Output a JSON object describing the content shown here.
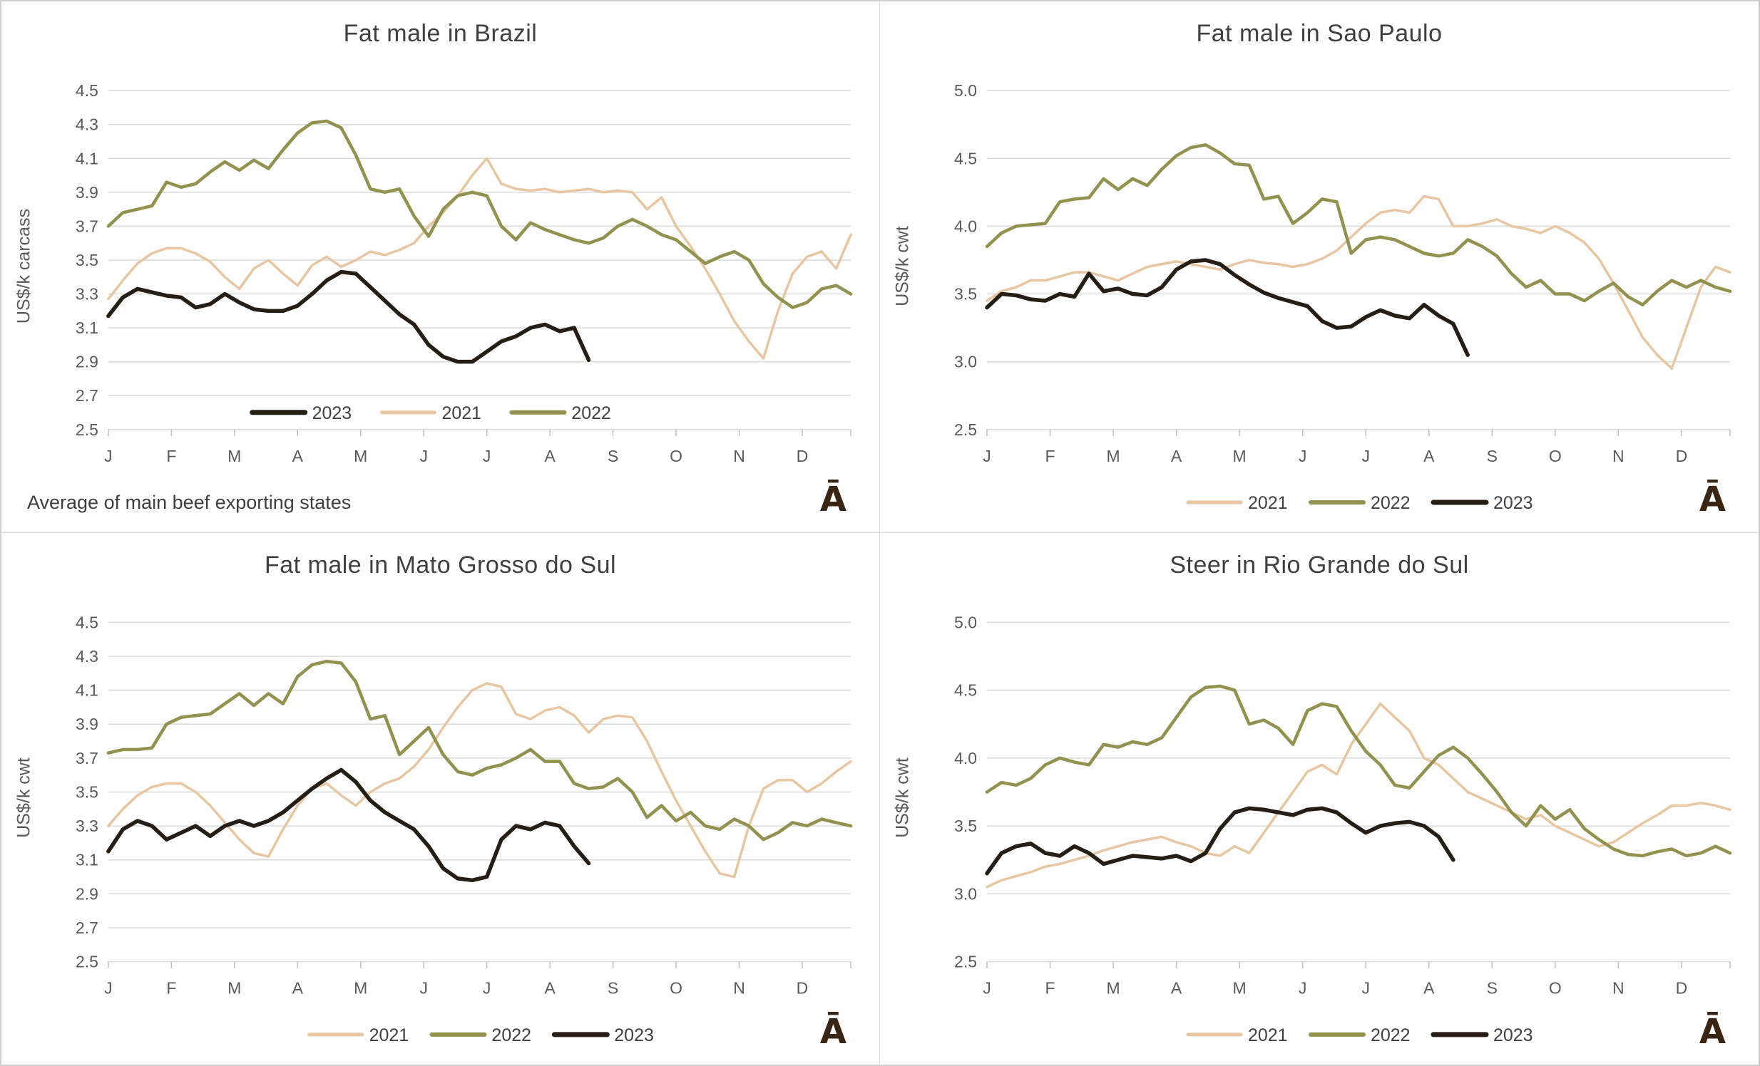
{
  "page": {
    "background": "#ffffff",
    "border_color": "#cfcfcf",
    "grid_color": "#d9d9d9",
    "tick_color": "#bfbfbf",
    "axis_text_color": "#595959",
    "title_text_color": "#3f3f3f",
    "legend_text_color": "#404040"
  },
  "logo": {
    "glyph": "Ā",
    "color": "#3a2514"
  },
  "series_colors": {
    "2021": "#e9c6a2",
    "2022": "#92914d",
    "2023": "#261d14"
  },
  "chart_data": [
    {
      "type": "line",
      "title": "Fat male in Brazil",
      "ylabel": "US$/k carcass",
      "ylim": [
        2.5,
        4.5
      ],
      "y_ticks": [
        "4.5",
        "4.3",
        "4.1",
        "3.9",
        "3.7",
        "3.5",
        "3.3",
        "3.1",
        "2.9",
        "2.7",
        "2.5"
      ],
      "x_tick_labels": [
        "J",
        "F",
        "M",
        "A",
        "M",
        "J",
        "J",
        "A",
        "S",
        "O",
        "N",
        "D"
      ],
      "legend": {
        "position": "inside",
        "entries": [
          "2023",
          "2021",
          "2022"
        ]
      },
      "footnote": "Average of main beef exporting states",
      "series": [
        {
          "name": "2021",
          "values": [
            3.27,
            3.38,
            3.48,
            3.54,
            3.57,
            3.57,
            3.54,
            3.49,
            3.4,
            3.33,
            3.45,
            3.5,
            3.42,
            3.35,
            3.47,
            3.52,
            3.46,
            3.5,
            3.55,
            3.53,
            3.56,
            3.6,
            3.7,
            3.78,
            3.88,
            4.0,
            4.1,
            3.95,
            3.92,
            3.91,
            3.92,
            3.9,
            3.91,
            3.92,
            3.9,
            3.91,
            3.9,
            3.8,
            3.87,
            3.7,
            3.58,
            3.45,
            3.3,
            3.14,
            3.02,
            2.92,
            3.2,
            3.42,
            3.52,
            3.55,
            3.45,
            3.65
          ]
        },
        {
          "name": "2022",
          "values": [
            3.7,
            3.78,
            3.8,
            3.82,
            3.96,
            3.93,
            3.95,
            4.02,
            4.08,
            4.03,
            4.09,
            4.04,
            4.15,
            4.25,
            4.31,
            4.32,
            4.28,
            4.12,
            3.92,
            3.9,
            3.92,
            3.76,
            3.64,
            3.8,
            3.88,
            3.9,
            3.88,
            3.7,
            3.62,
            3.72,
            3.68,
            3.65,
            3.62,
            3.6,
            3.63,
            3.7,
            3.74,
            3.7,
            3.65,
            3.62,
            3.55,
            3.48,
            3.52,
            3.55,
            3.5,
            3.36,
            3.28,
            3.22,
            3.25,
            3.33,
            3.35,
            3.3
          ]
        },
        {
          "name": "2023",
          "values": [
            3.17,
            3.28,
            3.33,
            3.31,
            3.29,
            3.28,
            3.22,
            3.24,
            3.3,
            3.25,
            3.21,
            3.2,
            3.2,
            3.23,
            3.3,
            3.38,
            3.43,
            3.42,
            3.34,
            3.26,
            3.18,
            3.12,
            3.0,
            2.93,
            2.9,
            2.9,
            2.96,
            3.02,
            3.05,
            3.1,
            3.12,
            3.08,
            3.1,
            2.91
          ]
        }
      ]
    },
    {
      "type": "line",
      "title": "Fat male in Sao Paulo",
      "ylabel": "US$/k cwt",
      "ylim": [
        2.5,
        5.0
      ],
      "y_ticks": [
        "5.0",
        "4.5",
        "4.0",
        "3.5",
        "3.0",
        "2.5"
      ],
      "x_tick_labels": [
        "J",
        "F",
        "M",
        "A",
        "M",
        "J",
        "J",
        "A",
        "S",
        "O",
        "N",
        "D"
      ],
      "legend": {
        "position": "below",
        "entries": [
          "2021",
          "2022",
          "2023"
        ]
      },
      "footnote": "",
      "series": [
        {
          "name": "2021",
          "values": [
            3.45,
            3.52,
            3.55,
            3.6,
            3.6,
            3.63,
            3.66,
            3.66,
            3.63,
            3.6,
            3.65,
            3.7,
            3.72,
            3.74,
            3.72,
            3.7,
            3.68,
            3.72,
            3.75,
            3.73,
            3.72,
            3.7,
            3.72,
            3.76,
            3.82,
            3.92,
            4.02,
            4.1,
            4.12,
            4.1,
            4.22,
            4.2,
            4.0,
            4.0,
            4.02,
            4.05,
            4.0,
            3.98,
            3.95,
            4.0,
            3.95,
            3.88,
            3.76,
            3.58,
            3.38,
            3.18,
            3.05,
            2.95,
            3.25,
            3.55,
            3.7,
            3.66
          ]
        },
        {
          "name": "2022",
          "values": [
            3.85,
            3.95,
            4.0,
            4.01,
            4.02,
            4.18,
            4.2,
            4.21,
            4.35,
            4.27,
            4.35,
            4.3,
            4.42,
            4.52,
            4.58,
            4.6,
            4.54,
            4.46,
            4.45,
            4.2,
            4.22,
            4.02,
            4.1,
            4.2,
            4.18,
            3.8,
            3.9,
            3.92,
            3.9,
            3.85,
            3.8,
            3.78,
            3.8,
            3.9,
            3.85,
            3.78,
            3.65,
            3.55,
            3.6,
            3.5,
            3.5,
            3.45,
            3.52,
            3.58,
            3.48,
            3.42,
            3.52,
            3.6,
            3.55,
            3.6,
            3.55,
            3.52
          ]
        },
        {
          "name": "2023",
          "values": [
            3.4,
            3.5,
            3.49,
            3.46,
            3.45,
            3.5,
            3.48,
            3.65,
            3.52,
            3.54,
            3.5,
            3.49,
            3.55,
            3.68,
            3.74,
            3.75,
            3.72,
            3.64,
            3.57,
            3.51,
            3.47,
            3.44,
            3.41,
            3.3,
            3.25,
            3.26,
            3.33,
            3.38,
            3.34,
            3.32,
            3.42,
            3.34,
            3.28,
            3.05
          ]
        }
      ]
    },
    {
      "type": "line",
      "title": "Fat male in Mato Grosso do Sul",
      "ylabel": "US$/k cwt",
      "ylim": [
        2.5,
        4.5
      ],
      "y_ticks": [
        "4.5",
        "4.3",
        "4.1",
        "3.9",
        "3.7",
        "3.5",
        "3.3",
        "3.1",
        "2.9",
        "2.7",
        "2.5"
      ],
      "x_tick_labels": [
        "J",
        "F",
        "M",
        "A",
        "M",
        "J",
        "J",
        "A",
        "S",
        "O",
        "N",
        "D"
      ],
      "legend": {
        "position": "below",
        "entries": [
          "2021",
          "2022",
          "2023"
        ]
      },
      "footnote": "",
      "series": [
        {
          "name": "2021",
          "values": [
            3.3,
            3.4,
            3.48,
            3.53,
            3.55,
            3.55,
            3.5,
            3.42,
            3.32,
            3.22,
            3.14,
            3.12,
            3.28,
            3.42,
            3.52,
            3.55,
            3.48,
            3.42,
            3.5,
            3.55,
            3.58,
            3.65,
            3.75,
            3.88,
            4.0,
            4.1,
            4.14,
            4.12,
            3.96,
            3.93,
            3.98,
            4.0,
            3.95,
            3.85,
            3.93,
            3.95,
            3.94,
            3.8,
            3.62,
            3.45,
            3.3,
            3.15,
            3.02,
            3.0,
            3.3,
            3.52,
            3.57,
            3.57,
            3.5,
            3.55,
            3.62,
            3.68
          ]
        },
        {
          "name": "2022",
          "values": [
            3.73,
            3.75,
            3.75,
            3.76,
            3.9,
            3.94,
            3.95,
            3.96,
            4.02,
            4.08,
            4.01,
            4.08,
            4.02,
            4.18,
            4.25,
            4.27,
            4.26,
            4.15,
            3.93,
            3.95,
            3.72,
            3.8,
            3.88,
            3.72,
            3.62,
            3.6,
            3.64,
            3.66,
            3.7,
            3.75,
            3.68,
            3.68,
            3.55,
            3.52,
            3.53,
            3.58,
            3.5,
            3.35,
            3.42,
            3.33,
            3.38,
            3.3,
            3.28,
            3.34,
            3.3,
            3.22,
            3.26,
            3.32,
            3.3,
            3.34,
            3.32,
            3.3
          ]
        },
        {
          "name": "2023",
          "values": [
            3.15,
            3.28,
            3.33,
            3.3,
            3.22,
            3.26,
            3.3,
            3.24,
            3.3,
            3.33,
            3.3,
            3.33,
            3.38,
            3.45,
            3.52,
            3.58,
            3.63,
            3.56,
            3.45,
            3.38,
            3.33,
            3.28,
            3.18,
            3.05,
            2.99,
            2.98,
            3.0,
            3.22,
            3.3,
            3.28,
            3.32,
            3.3,
            3.18,
            3.08
          ]
        }
      ]
    },
    {
      "type": "line",
      "title": "Steer in Rio Grande do Sul",
      "ylabel": "US$/k cwt",
      "ylim": [
        2.5,
        5.0
      ],
      "y_ticks": [
        "5.0",
        "4.5",
        "4.0",
        "3.5",
        "3.0",
        "2.5"
      ],
      "x_tick_labels": [
        "J",
        "F",
        "M",
        "A",
        "M",
        "J",
        "J",
        "A",
        "S",
        "O",
        "N",
        "D"
      ],
      "legend": {
        "position": "below",
        "entries": [
          "2021",
          "2022",
          "2023"
        ]
      },
      "footnote": "",
      "series": [
        {
          "name": "2021",
          "values": [
            3.05,
            3.1,
            3.13,
            3.16,
            3.2,
            3.22,
            3.25,
            3.28,
            3.32,
            3.35,
            3.38,
            3.4,
            3.42,
            3.38,
            3.35,
            3.3,
            3.28,
            3.35,
            3.3,
            3.45,
            3.6,
            3.75,
            3.9,
            3.95,
            3.88,
            4.1,
            4.25,
            4.4,
            4.3,
            4.2,
            4.0,
            3.95,
            3.85,
            3.75,
            3.7,
            3.65,
            3.6,
            3.55,
            3.58,
            3.5,
            3.45,
            3.4,
            3.35,
            3.38,
            3.45,
            3.52,
            3.58,
            3.65,
            3.65,
            3.67,
            3.65,
            3.62
          ]
        },
        {
          "name": "2022",
          "values": [
            3.75,
            3.82,
            3.8,
            3.85,
            3.95,
            4.0,
            3.97,
            3.95,
            4.1,
            4.08,
            4.12,
            4.1,
            4.15,
            4.3,
            4.45,
            4.52,
            4.53,
            4.5,
            4.25,
            4.28,
            4.22,
            4.1,
            4.35,
            4.4,
            4.38,
            4.2,
            4.05,
            3.95,
            3.8,
            3.78,
            3.9,
            4.02,
            4.08,
            4.0,
            3.88,
            3.75,
            3.6,
            3.5,
            3.65,
            3.55,
            3.62,
            3.48,
            3.4,
            3.33,
            3.29,
            3.28,
            3.31,
            3.33,
            3.28,
            3.3,
            3.35,
            3.3
          ]
        },
        {
          "name": "2023",
          "values": [
            3.15,
            3.3,
            3.35,
            3.37,
            3.3,
            3.28,
            3.35,
            3.3,
            3.22,
            3.25,
            3.28,
            3.27,
            3.26,
            3.28,
            3.24,
            3.3,
            3.48,
            3.6,
            3.63,
            3.62,
            3.6,
            3.58,
            3.62,
            3.63,
            3.6,
            3.52,
            3.45,
            3.5,
            3.52,
            3.53,
            3.5,
            3.42,
            3.25
          ]
        }
      ]
    }
  ]
}
